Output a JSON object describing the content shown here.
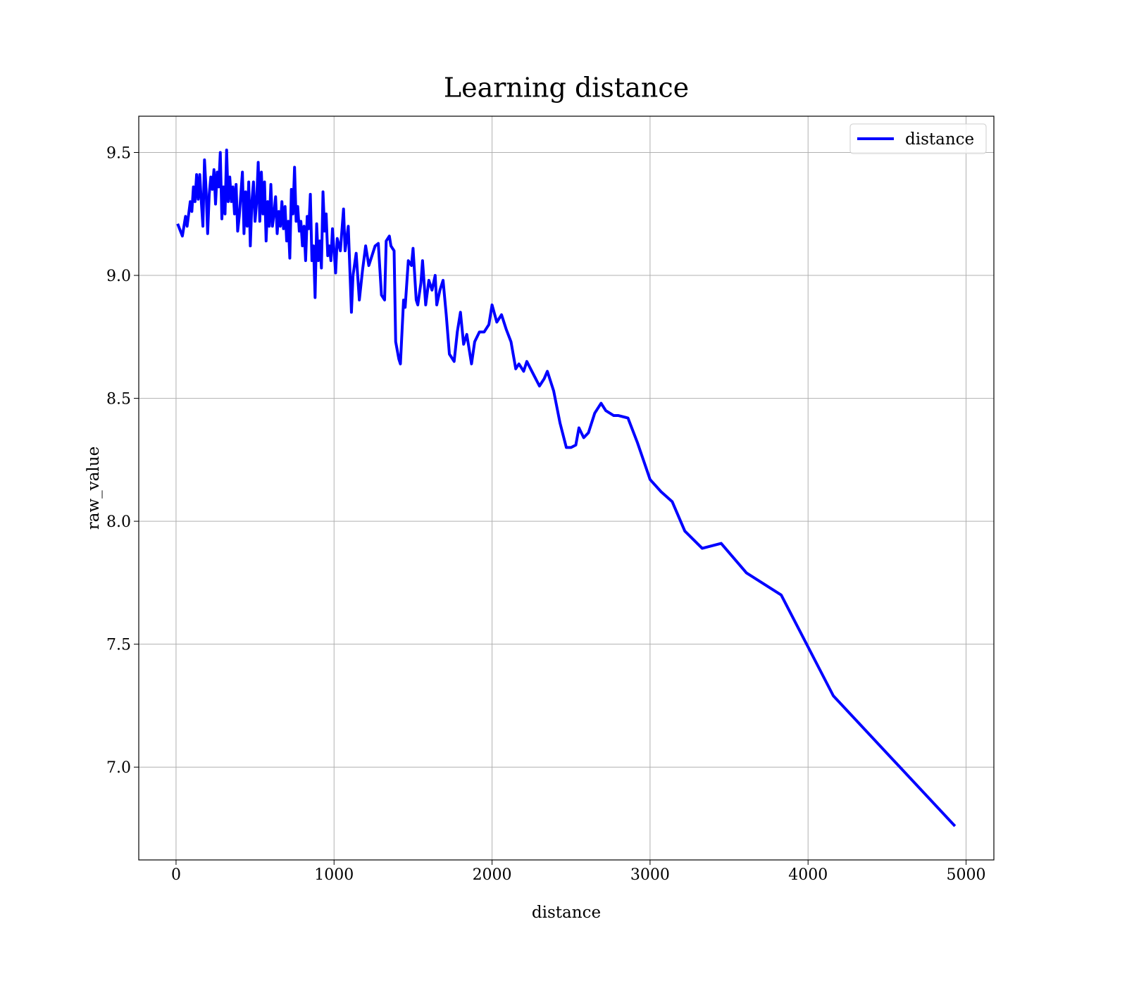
{
  "chart_data": {
    "type": "line",
    "title": "Learning distance",
    "xlabel": "distance",
    "ylabel": "raw_value",
    "x": [
      10,
      40,
      60,
      70,
      90,
      100,
      110,
      120,
      130,
      140,
      150,
      160,
      170,
      180,
      190,
      200,
      210,
      220,
      230,
      240,
      250,
      260,
      270,
      280,
      290,
      300,
      310,
      320,
      330,
      340,
      350,
      360,
      370,
      380,
      390,
      400,
      420,
      430,
      440,
      450,
      460,
      470,
      480,
      490,
      500,
      510,
      520,
      530,
      540,
      550,
      560,
      570,
      580,
      590,
      600,
      610,
      620,
      630,
      640,
      650,
      660,
      670,
      680,
      690,
      700,
      710,
      720,
      730,
      740,
      750,
      760,
      770,
      780,
      790,
      800,
      810,
      820,
      830,
      840,
      850,
      860,
      870,
      880,
      890,
      900,
      910,
      920,
      930,
      940,
      950,
      960,
      970,
      980,
      990,
      1000,
      1010,
      1020,
      1040,
      1060,
      1070,
      1090,
      1110,
      1120,
      1140,
      1160,
      1180,
      1200,
      1220,
      1240,
      1260,
      1280,
      1300,
      1320,
      1330,
      1350,
      1360,
      1380,
      1390,
      1410,
      1420,
      1440,
      1450,
      1470,
      1490,
      1500,
      1520,
      1530,
      1550,
      1560,
      1580,
      1600,
      1620,
      1640,
      1650,
      1670,
      1690,
      1710,
      1730,
      1760,
      1780,
      1800,
      1820,
      1840,
      1870,
      1890,
      1920,
      1950,
      1980,
      2000,
      2030,
      2060,
      2090,
      2120,
      2150,
      2170,
      2200,
      2220,
      2260,
      2300,
      2330,
      2350,
      2390,
      2430,
      2470,
      2500,
      2530,
      2550,
      2580,
      2610,
      2650,
      2690,
      2720,
      2770,
      2800,
      2860,
      2920,
      3000,
      3070,
      3140,
      3220,
      3330,
      3450,
      3610,
      3830,
      4160,
      4930
    ],
    "series": [
      {
        "name": "distance",
        "color": "#0000ff",
        "values": [
          9.21,
          9.16,
          9.24,
          9.2,
          9.3,
          9.26,
          9.36,
          9.3,
          9.41,
          9.31,
          9.41,
          9.3,
          9.2,
          9.47,
          9.35,
          9.17,
          9.33,
          9.4,
          9.35,
          9.43,
          9.29,
          9.42,
          9.36,
          9.5,
          9.23,
          9.36,
          9.25,
          9.51,
          9.3,
          9.4,
          9.3,
          9.36,
          9.25,
          9.37,
          9.18,
          9.24,
          9.42,
          9.17,
          9.34,
          9.2,
          9.38,
          9.12,
          9.3,
          9.38,
          9.22,
          9.3,
          9.46,
          9.22,
          9.42,
          9.25,
          9.38,
          9.14,
          9.3,
          9.2,
          9.37,
          9.2,
          9.25,
          9.32,
          9.17,
          9.26,
          9.2,
          9.3,
          9.19,
          9.28,
          9.14,
          9.22,
          9.07,
          9.35,
          9.25,
          9.44,
          9.22,
          9.28,
          9.18,
          9.22,
          9.12,
          9.2,
          9.06,
          9.24,
          9.19,
          9.33,
          9.06,
          9.12,
          8.91,
          9.21,
          9.06,
          9.14,
          9.03,
          9.34,
          9.18,
          9.25,
          9.08,
          9.12,
          9.06,
          9.19,
          9.1,
          9.01,
          9.15,
          9.1,
          9.27,
          9.1,
          9.2,
          8.85,
          9.0,
          9.09,
          8.9,
          9.02,
          9.12,
          9.04,
          9.08,
          9.12,
          9.13,
          8.92,
          8.9,
          9.14,
          9.16,
          9.12,
          9.1,
          8.73,
          8.66,
          8.64,
          8.9,
          8.87,
          9.06,
          9.04,
          9.11,
          8.9,
          8.88,
          8.97,
          9.06,
          8.88,
          8.98,
          8.94,
          9.0,
          8.88,
          8.94,
          8.98,
          8.84,
          8.68,
          8.65,
          8.77,
          8.85,
          8.72,
          8.76,
          8.64,
          8.73,
          8.77,
          8.77,
          8.8,
          8.88,
          8.81,
          8.84,
          8.78,
          8.73,
          8.62,
          8.64,
          8.61,
          8.65,
          8.6,
          8.55,
          8.58,
          8.61,
          8.53,
          8.4,
          8.3,
          8.3,
          8.31,
          8.38,
          8.34,
          8.36,
          8.44,
          8.48,
          8.45,
          8.43,
          8.43,
          8.42,
          8.32,
          8.17,
          8.12,
          8.08,
          7.96,
          7.89,
          7.91,
          7.79,
          7.7,
          7.29,
          6.76
        ]
      }
    ],
    "xlim": [
      -236,
      5176
    ],
    "ylim": [
      6.6225,
      9.6475
    ],
    "xticks": [
      0,
      1000,
      2000,
      3000,
      4000,
      5000
    ],
    "yticks": [
      {
        "value": 7,
        "label": "7.0"
      },
      7.5,
      {
        "value": 8,
        "label": "8.0"
      },
      8.5,
      {
        "value": 9,
        "label": "9.0"
      },
      9.5
    ],
    "grid": true,
    "legend": "upper right"
  }
}
